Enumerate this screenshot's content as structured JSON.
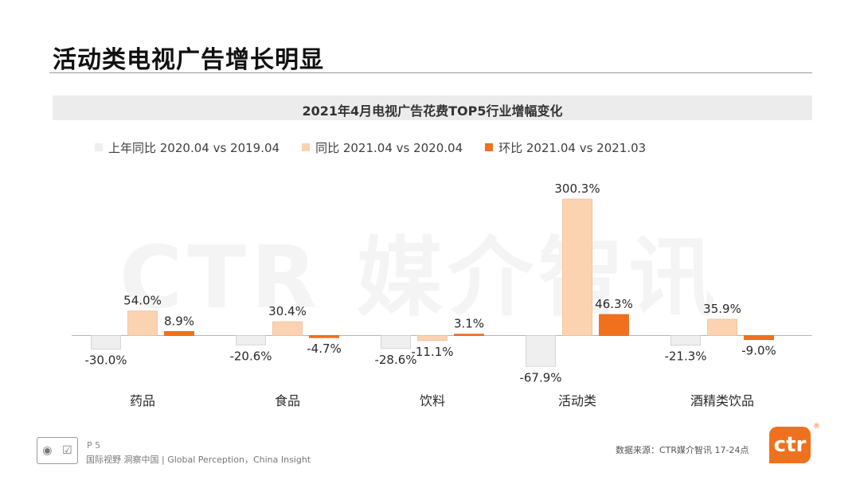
{
  "page": {
    "title": "活动类电视广告增长明显"
  },
  "colors": {
    "series_prev_yoy": "#efefef",
    "series_yoy": "#fbd3b1",
    "series_mom": "#f0711d",
    "brand": "#f0711d"
  },
  "watermark": "CTR 媒介智讯",
  "footer": {
    "page_number": "P 5",
    "tagline": "国际视野  洞察中国 |  Global Perception，China Insight",
    "source": "数据来源：CTR媒介智讯    17-24点",
    "brand_logo_text": "ctr",
    "brand_registered": "®"
  },
  "chart_data": {
    "type": "bar",
    "title": "2021年4月电视广告花费TOP5行业增幅变化",
    "categories": [
      "药品",
      "食品",
      "饮料",
      "活动类",
      "酒精类饮品"
    ],
    "legend_position": "top-left",
    "grid": false,
    "ylim": [
      -70,
      310
    ],
    "series": [
      {
        "name": "上年同比 2020.04 vs 2019.04",
        "values": [
          -30.0,
          -20.6,
          -28.6,
          -67.9,
          -21.3
        ],
        "labels": [
          "-30.0%",
          "-20.6%",
          "-28.6%",
          "-67.9%",
          "-21.3%"
        ]
      },
      {
        "name": "同比 2021.04 vs 2020.04",
        "values": [
          54.0,
          30.4,
          -11.1,
          300.3,
          35.9
        ],
        "labels": [
          "54.0%",
          "30.4%",
          "-11.1%",
          "300.3%",
          "35.9%"
        ]
      },
      {
        "name": "环比 2021.04 vs 2021.03",
        "values": [
          8.9,
          -4.7,
          3.1,
          46.3,
          -9.0
        ],
        "labels": [
          "8.9%",
          "-4.7%",
          "3.1%",
          "46.3%",
          "-9.0%"
        ]
      }
    ]
  }
}
